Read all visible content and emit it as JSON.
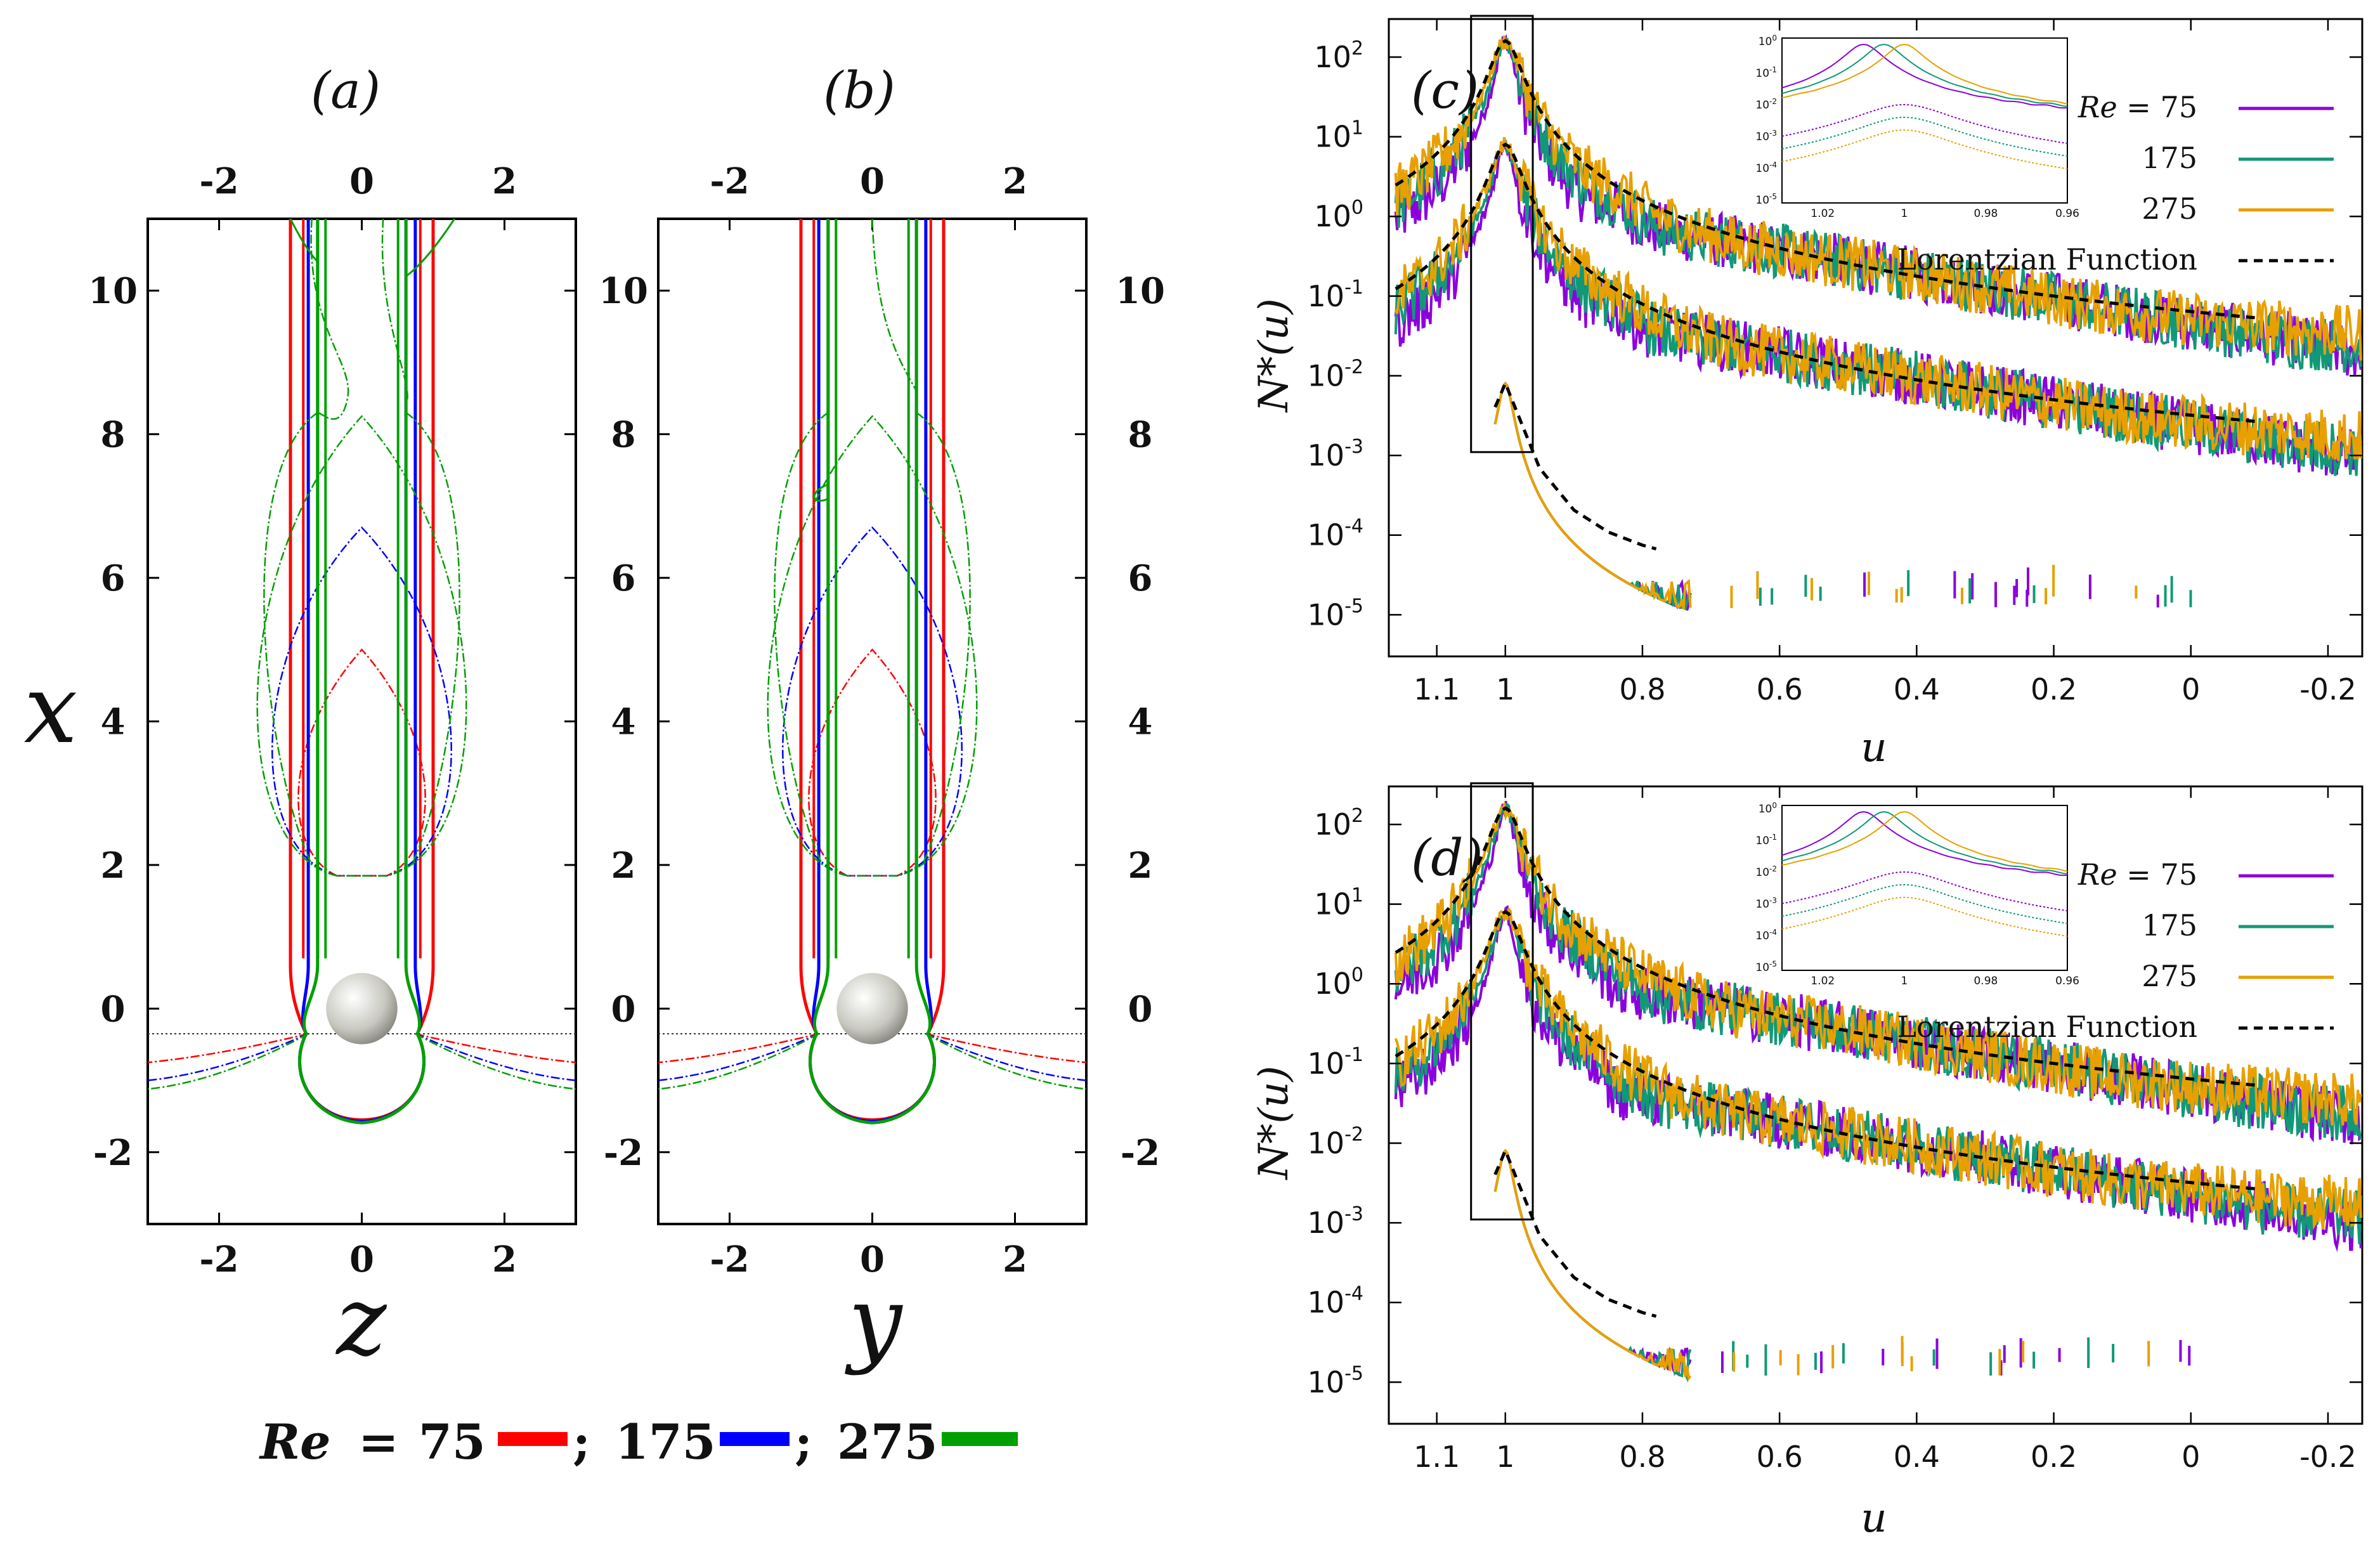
{
  "colors": {
    "re75_contour": "#ff0000",
    "re175_contour": "#0000ff",
    "re275_contour": "#00a000",
    "re75_spec": "#8b00dd",
    "re175_spec": "#119977",
    "re275_spec": "#e8a000",
    "lorentz": "#000000",
    "sphere": "#d8d8d0"
  },
  "panel_a": {
    "label": "(a)",
    "xvar": "z",
    "yvar": "x",
    "xticks": [
      "-2",
      "0",
      "2"
    ],
    "yticks": [
      "-2",
      "0",
      "2",
      "4",
      "6",
      "8",
      "10"
    ],
    "xlim": [
      -3,
      3
    ],
    "ylim": [
      -3,
      11
    ]
  },
  "panel_b": {
    "label": "(b)",
    "xvar": "y",
    "xticks": [
      "-2",
      "0",
      "2"
    ],
    "yticks": [
      "-2",
      "0",
      "2",
      "4",
      "6",
      "8",
      "10"
    ],
    "xlim": [
      -3,
      3
    ],
    "ylim": [
      -3,
      11
    ]
  },
  "bottom_legend": {
    "prefix": "Re",
    "equals": "=",
    "entries": [
      "75",
      "175",
      "275"
    ],
    "separator": ";"
  },
  "spectra": {
    "ylabel": "N*(u)",
    "xlabel": "u",
    "xticks": [
      "1.1",
      "1",
      "0.8",
      "0.6",
      "0.4",
      "0.2",
      "0",
      "-0.2"
    ],
    "ytick_mantissa": "10",
    "ytick_exponents": [
      "2",
      "1",
      "0",
      "-1",
      "-2",
      "-3",
      "-4",
      "-5"
    ],
    "legend": {
      "re_label": "Re",
      "re_eq": "= 75",
      "entries": [
        "175",
        "275"
      ],
      "lorentz": "Lorentzian Function"
    },
    "inset": {
      "xticks": [
        "1.02",
        "1",
        "0.98",
        "0.96"
      ],
      "yticks": [
        "0",
        "-1",
        "-2",
        "-3",
        "-4",
        "-5"
      ]
    }
  },
  "panel_c": {
    "label": "(c)"
  },
  "panel_d": {
    "label": "(d)"
  },
  "chart_data": [
    {
      "type": "line",
      "title": "(a)",
      "xlabel": "z",
      "ylabel": "x",
      "xlim": [
        -3,
        3
      ],
      "ylim": [
        -3,
        11
      ],
      "series": [
        {
          "name": "Re = 75",
          "recirculation_length": 5.0,
          "wake_lines_z": [
            -1.0,
            1.0
          ]
        },
        {
          "name": "Re = 175",
          "recirculation_length": 6.7,
          "wake_lines_z": [
            -0.75,
            0.75
          ]
        },
        {
          "name": "Re = 275",
          "recirculation_length": 8.2,
          "wake_lines_z": [
            -0.62,
            0.62
          ]
        }
      ]
    },
    {
      "type": "line",
      "title": "(b)",
      "xlabel": "y",
      "ylabel": "x",
      "xlim": [
        -3,
        3
      ],
      "ylim": [
        -3,
        11
      ],
      "series": [
        {
          "name": "Re = 75",
          "recirculation_length": 5.0
        },
        {
          "name": "Re = 175",
          "recirculation_length": 6.7
        },
        {
          "name": "Re = 275",
          "recirculation_length": 8.3
        }
      ]
    },
    {
      "type": "line",
      "title": "(c)",
      "xlabel": "u",
      "ylabel": "N*(u)",
      "xlim": [
        1.17,
        -0.25
      ],
      "yscale": "log",
      "ylim": [
        3e-06,
        300
      ],
      "series": [
        {
          "name": "Re = 75",
          "peak_u": 1.0,
          "peak_value": 180
        },
        {
          "name": "175",
          "peak_u": 1.0,
          "peak_value": 150
        },
        {
          "name": "275",
          "peak_u": 1.0,
          "peak_value": 200
        },
        {
          "name": "Lorentzian Function",
          "style": "dashed"
        }
      ]
    },
    {
      "type": "line",
      "title": "(d)",
      "xlabel": "u",
      "ylabel": "N*(u)",
      "xlim": [
        1.17,
        -0.25
      ],
      "yscale": "log",
      "ylim": [
        3e-06,
        300
      ],
      "series": [
        {
          "name": "Re = 75",
          "peak_u": 1.0,
          "peak_value": 180
        },
        {
          "name": "175",
          "peak_u": 1.0,
          "peak_value": 150
        },
        {
          "name": "275",
          "peak_u": 1.0,
          "peak_value": 200
        },
        {
          "name": "Lorentzian Function",
          "style": "dashed"
        }
      ]
    }
  ]
}
